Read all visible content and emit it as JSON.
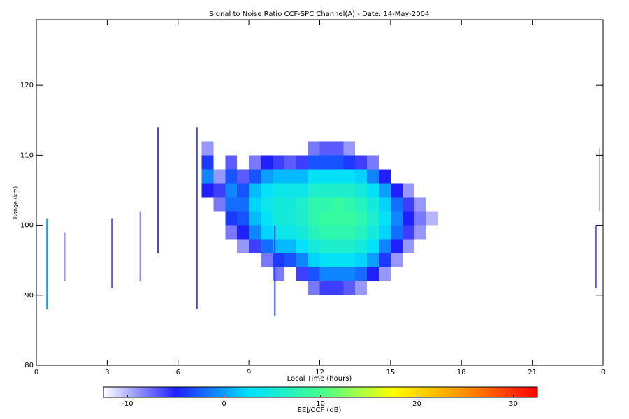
{
  "chart_data": {
    "type": "heatmap",
    "title": "Signal to Noise Ratio CCF-SPC Channel(A) - Date: 14-May-2004",
    "x_label": "Local Time (hours)",
    "y_label": "Range (km)",
    "xlim": [
      0,
      24
    ],
    "xticks": [
      0,
      3,
      6,
      9,
      12,
      15,
      18,
      21,
      {
        "value": 24,
        "label": "0"
      }
    ],
    "ylim": [
      80,
      129.4
    ],
    "yticks": [
      80,
      90,
      100,
      110,
      120
    ],
    "x": [
      7.25,
      7.75,
      8.25,
      8.75,
      9.25,
      9.75,
      10.25,
      10.75,
      11.25,
      11.75,
      12.25,
      12.75,
      13.25,
      13.75,
      14.25,
      14.75,
      15.25,
      15.75,
      16.25,
      16.75
    ],
    "y": [
      89,
      91,
      93,
      95,
      97,
      99,
      101,
      103,
      105,
      107,
      109,
      111
    ],
    "cell_width": 0.5,
    "cell_height": 2,
    "z": [
      [
        null,
        null,
        null,
        null,
        null,
        null,
        null,
        null,
        null,
        null,
        null,
        null,
        null,
        null,
        null,
        null,
        null,
        null,
        null,
        null
      ],
      [
        null,
        null,
        null,
        null,
        null,
        null,
        null,
        null,
        null,
        -8,
        -6,
        -6,
        -7,
        -9,
        null,
        null,
        null,
        null,
        null,
        null
      ],
      [
        null,
        null,
        null,
        null,
        null,
        null,
        -8,
        null,
        -6,
        -3,
        -1,
        -1,
        -1,
        -2,
        -5,
        -9,
        null,
        null,
        null,
        null
      ],
      [
        null,
        null,
        null,
        null,
        null,
        -8,
        -4,
        -3,
        -1,
        2,
        3,
        3,
        3,
        2,
        0,
        -4,
        -9,
        null,
        null,
        null
      ],
      [
        null,
        null,
        null,
        -9,
        -6,
        -2,
        1,
        1,
        3,
        5,
        6,
        6,
        6,
        5,
        3,
        -1,
        -5,
        -9,
        null,
        null
      ],
      [
        null,
        null,
        -8,
        -5,
        -1,
        2,
        4,
        4,
        5,
        7,
        8,
        8,
        8,
        7,
        5,
        2,
        -2,
        -6,
        -9,
        null
      ],
      [
        null,
        null,
        -4,
        -3,
        1,
        3,
        5,
        5,
        6,
        8,
        9,
        9,
        9,
        8,
        6,
        3,
        -1,
        -5,
        -8,
        -10
      ],
      [
        null,
        -8,
        -2,
        -2,
        2,
        4,
        5,
        5,
        6,
        8,
        8,
        9,
        8,
        7,
        5,
        2,
        -2,
        -6,
        -9,
        null
      ],
      [
        -5,
        -6,
        -1,
        -3,
        1,
        3,
        4,
        4,
        4,
        6,
        6,
        6,
        6,
        5,
        3,
        0,
        -5,
        -9,
        null,
        null
      ],
      [
        -1,
        -9,
        -3,
        -7,
        -3,
        0,
        1,
        1,
        1,
        3,
        3,
        3,
        3,
        2,
        -1,
        -5,
        null,
        null,
        null,
        null
      ],
      [
        -4,
        null,
        -7,
        null,
        -8,
        -5,
        -6,
        -7,
        -6,
        -3,
        -3,
        -3,
        -4,
        -6,
        -8,
        null,
        null,
        null,
        null,
        null
      ],
      [
        -9,
        null,
        null,
        null,
        null,
        null,
        null,
        null,
        null,
        -8,
        -7,
        -7,
        -9,
        null,
        null,
        null,
        null,
        null,
        null,
        null
      ]
    ],
    "streaks": [
      {
        "x": 0.45,
        "y0": 88,
        "y1": 101,
        "value": 0
      },
      {
        "x": 1.2,
        "y0": 92,
        "y1": 99,
        "value": -9
      },
      {
        "x": 3.2,
        "y0": 91,
        "y1": 101,
        "value": -7
      },
      {
        "x": 4.4,
        "y0": 92,
        "y1": 102,
        "value": -7
      },
      {
        "x": 5.15,
        "y0": 96,
        "y1": 114,
        "value": -6
      },
      {
        "x": 6.8,
        "y0": 88,
        "y1": 114,
        "value": -6
      },
      {
        "x": 10.1,
        "y0": 87,
        "y1": 100,
        "value": -4
      },
      {
        "x": 23.7,
        "y0": 91,
        "y1": 100,
        "value": -7
      },
      {
        "x": 23.85,
        "y0": 102,
        "y1": 111,
        "value": -10
      }
    ],
    "colorbar_label": "EEJ/CCF (dB)",
    "zlim": [
      -12.5,
      32.5
    ],
    "zticks": [
      -10,
      0,
      10,
      20,
      30
    ],
    "colormap": [
      "#ffffff",
      "#2020ff",
      "#00e0ff",
      "#40ff90",
      "#ffff00",
      "#ff9000",
      "#ff0000"
    ]
  }
}
